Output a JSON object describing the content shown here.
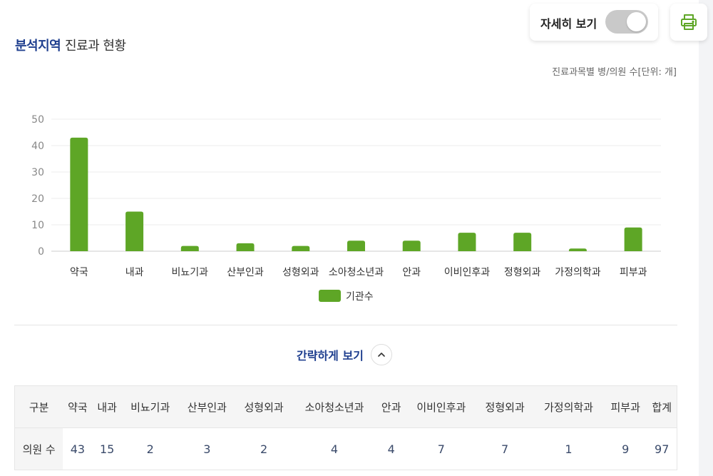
{
  "header": {
    "title_accent": "분석지역",
    "title_rest": "진료과 현황",
    "detail_toggle_label": "자세히 보기",
    "unit_note": "진료과목별 병/의원 수[단위: 개]"
  },
  "colors": {
    "bar": "#5ea626",
    "accent": "#1f3f8f",
    "toggle_off": "#c9c9c9"
  },
  "icons": {
    "print": "printer-icon",
    "collapse": "chevron-up-icon"
  },
  "chart_data": {
    "type": "bar",
    "categories": [
      "약국",
      "내과",
      "비뇨기과",
      "산부인과",
      "성형외과",
      "소아청소년과",
      "안과",
      "이비인후과",
      "정형외과",
      "가정의학과",
      "피부과"
    ],
    "series": [
      {
        "name": "기관수",
        "values": [
          43,
          15,
          2,
          3,
          2,
          4,
          4,
          7,
          7,
          1,
          9
        ]
      }
    ],
    "yticks": [
      0,
      10,
      20,
      30,
      40,
      50
    ],
    "ylim": [
      0,
      50
    ],
    "grid": true,
    "legend": "bottom"
  },
  "collapse": {
    "label": "간략하게 보기"
  },
  "table": {
    "headers": [
      "구분",
      "약국",
      "내과",
      "비뇨기과",
      "산부인과",
      "성형외과",
      "소아청소년과",
      "안과",
      "이비인후과",
      "정형외과",
      "가정의학과",
      "피부과",
      "합계"
    ],
    "row_label": "의원 수",
    "values": [
      "43",
      "15",
      "2",
      "3",
      "2",
      "4",
      "4",
      "7",
      "7",
      "1",
      "9",
      "97"
    ]
  }
}
